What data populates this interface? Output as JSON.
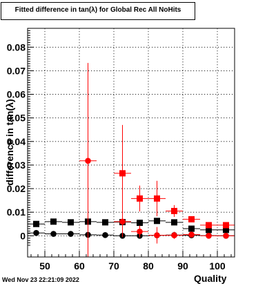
{
  "title": "Fitted difference in tan(λ) for Global Rec All NoHits",
  "footer_date": "Wed Nov 23 22:21:09 2022",
  "colors": {
    "red": "#ff0000",
    "dark_red": "#cc0000",
    "black": "#000000",
    "grid": "#000000"
  },
  "chart_data": {
    "type": "scatter",
    "title": "Fitted difference in tan(λ) for Global Rec All NoHits",
    "xlabel": "Quality",
    "ylabel": "difference in tan(λ)",
    "xlim": [
      45,
      105
    ],
    "ylim": [
      -0.009,
      0.088
    ],
    "x_ticks": [
      50,
      60,
      70,
      80,
      90,
      100
    ],
    "y_ticks": [
      0,
      0.01,
      0.02,
      0.03,
      0.04,
      0.05,
      0.06,
      0.07,
      0.08
    ],
    "x_tick_labels": [
      "50",
      "60",
      "70",
      "80",
      "90",
      "100"
    ],
    "y_tick_labels": [
      "0",
      "0.01",
      "0.02",
      "0.03",
      "0.04",
      "0.05",
      "0.06",
      "0.07",
      "0.08"
    ],
    "grid": true,
    "x_half_width": 2.5,
    "series": [
      {
        "marker": "square",
        "color": "#000000",
        "points": [
          {
            "x": 47.5,
            "y": 0.005,
            "err": 0.0005
          },
          {
            "x": 52.5,
            "y": 0.006,
            "err": 0.0005
          },
          {
            "x": 57.5,
            "y": 0.0057,
            "err": 0.0005
          },
          {
            "x": 62.5,
            "y": 0.006,
            "err": 0.0005
          },
          {
            "x": 67.5,
            "y": 0.0057,
            "err": 0.0005
          },
          {
            "x": 72.5,
            "y": 0.0058,
            "err": 0.0005
          },
          {
            "x": 77.5,
            "y": 0.0055,
            "err": 0.0006
          },
          {
            "x": 82.5,
            "y": 0.0063,
            "err": 0.0006
          },
          {
            "x": 87.5,
            "y": 0.0057,
            "err": 0.0006
          },
          {
            "x": 92.5,
            "y": 0.003,
            "err": 0.0006
          },
          {
            "x": 97.5,
            "y": 0.0025,
            "err": 0.0007
          },
          {
            "x": 102.5,
            "y": 0.0025,
            "err": 0.0007
          }
        ]
      },
      {
        "marker": "circle",
        "color": "#000000",
        "points": [
          {
            "x": 47.5,
            "y": 0.0012,
            "err": 0.0003
          },
          {
            "x": 52.5,
            "y": 0.0008,
            "err": 0.0003
          },
          {
            "x": 57.5,
            "y": 0.0008,
            "err": 0.0003
          },
          {
            "x": 62.5,
            "y": 0.0004,
            "err": 0.0003
          },
          {
            "x": 67.5,
            "y": 0.0003,
            "err": 0.0003
          },
          {
            "x": 72.5,
            "y": 0.0,
            "err": 0.0003
          },
          {
            "x": 77.5,
            "y": 0.0,
            "err": 0.0003
          },
          {
            "x": 82.5,
            "y": 0.0002,
            "err": 0.0003
          },
          {
            "x": 87.5,
            "y": 0.0003,
            "err": 0.0003
          },
          {
            "x": 92.5,
            "y": 0.0002,
            "err": 0.0003
          },
          {
            "x": 97.5,
            "y": 0.0001,
            "err": 0.0003
          },
          {
            "x": 102.5,
            "y": 0.0,
            "err": 0.0003
          }
        ]
      },
      {
        "marker": "square",
        "color": "#ff0000",
        "points": [
          {
            "x": 72.5,
            "y": 0.0265,
            "err": 0.0205
          },
          {
            "x": 77.5,
            "y": 0.0158,
            "err": 0.0055
          },
          {
            "x": 82.5,
            "y": 0.0158,
            "err": 0.0075
          },
          {
            "x": 87.5,
            "y": 0.0105,
            "err": 0.0025
          },
          {
            "x": 92.5,
            "y": 0.007,
            "err": 0.0012
          },
          {
            "x": 97.5,
            "y": 0.0045,
            "err": 0.0008
          },
          {
            "x": 102.5,
            "y": 0.0045,
            "err": 0.0008
          }
        ]
      },
      {
        "marker": "circle",
        "color": "#ff0000",
        "points": [
          {
            "x": 62.5,
            "y": 0.0318,
            "err": 0.0415
          },
          {
            "x": 72.5,
            "y": 0.006,
            "err": 0.0065
          },
          {
            "x": 77.5,
            "y": 0.0018,
            "err": 0.0025
          },
          {
            "x": 82.5,
            "y": 0.0002,
            "err": 0.0035
          },
          {
            "x": 87.5,
            "y": 0.0002,
            "err": 0.0015
          },
          {
            "x": 92.5,
            "y": 0.0005,
            "err": 0.0007
          },
          {
            "x": 97.5,
            "y": 0.0,
            "err": 0.0004
          },
          {
            "x": 102.5,
            "y": 0.0,
            "err": 0.0004
          }
        ]
      }
    ]
  }
}
